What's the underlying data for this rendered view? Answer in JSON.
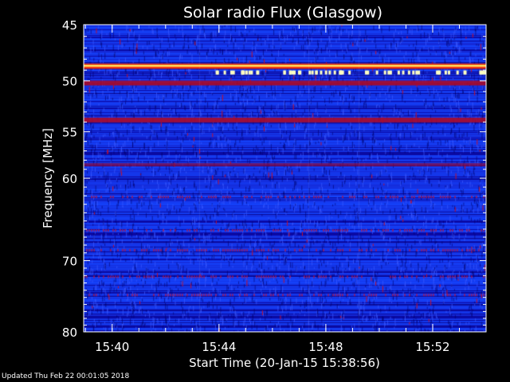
{
  "chart_data": {
    "type": "heatmap",
    "title": "Solar radio Flux (Glasgow)",
    "ylabel": "Frequency [MHz]",
    "xlabel": "Start Time (20-Jan-15 15:38:56)",
    "y_scale": "log",
    "ylim": [
      45,
      80
    ],
    "y_ticks": [
      {
        "value": 45,
        "label": "45"
      },
      {
        "value": 50,
        "label": "50"
      },
      {
        "value": 55,
        "label": "55"
      },
      {
        "value": 60,
        "label": "60"
      },
      {
        "value": 70,
        "label": "70"
      },
      {
        "value": 80,
        "label": "80"
      }
    ],
    "x_range": [
      "15:38:56",
      "15:54:00"
    ],
    "x_ticks": [
      {
        "value": "15:40",
        "label": "15:40"
      },
      {
        "value": "15:44",
        "label": "15:44"
      },
      {
        "value": "15:48",
        "label": "15:48"
      },
      {
        "value": "15:52",
        "label": "15:52"
      }
    ],
    "colormap": [
      "#000060",
      "#0000c8",
      "#1e3cff",
      "#c00000",
      "#ff3000",
      "#ffff40",
      "#ffffff"
    ],
    "bright_bands_mhz": [
      {
        "freq": 48.6,
        "level": "high"
      },
      {
        "freq": 50.2,
        "level": "medium"
      },
      {
        "freq": 53.8,
        "level": "medium"
      },
      {
        "freq": 58.5,
        "level": "low"
      }
    ]
  },
  "footer": "Updated Thu Feb 22 00:01:05 2018"
}
